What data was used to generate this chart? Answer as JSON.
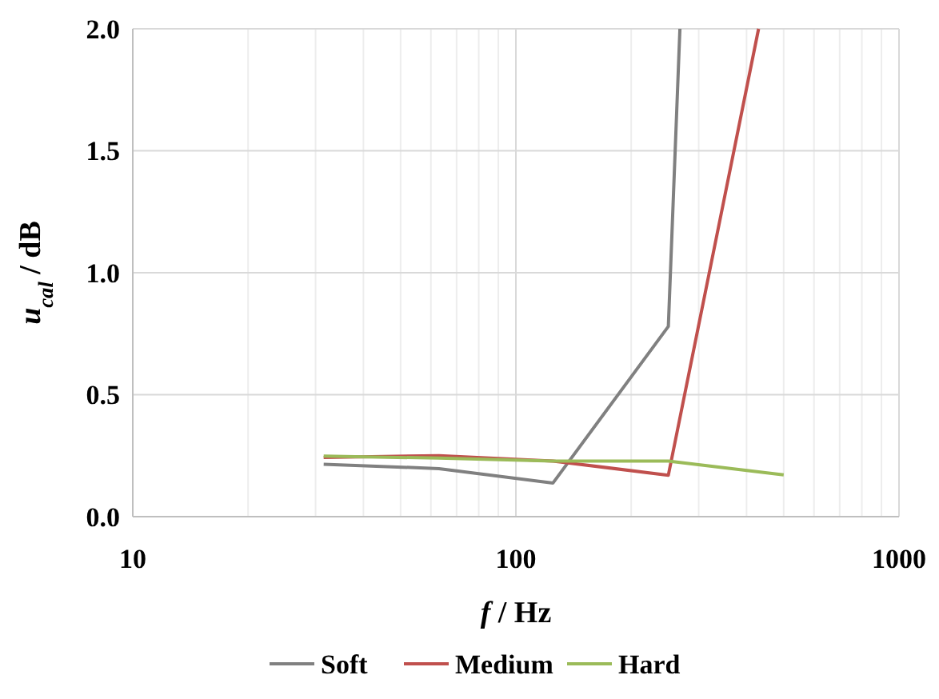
{
  "chart_data": {
    "type": "line",
    "xlabel": "f / Hz",
    "ylabel": "u$_{cal}$ / dB",
    "log": "x",
    "grid": true,
    "legend": "bottom",
    "marker": "none",
    "line_style": "solid",
    "xlim": [
      10,
      1000
    ],
    "xticks": [
      10,
      100,
      1000
    ],
    "ylim": [
      0,
      2
    ],
    "yticks": [
      {
        "value": 0,
        "label": "0.0"
      },
      {
        "value": 0.5,
        "label": "0.5"
      },
      {
        "value": 1,
        "label": "1.0"
      },
      {
        "value": 1.5,
        "label": "1.5"
      },
      {
        "value": 2,
        "label": "2.0"
      }
    ],
    "series": [
      {
        "name": "Soft",
        "color": "#808080",
        "x": [
          31.5,
          63,
          125,
          250,
          268
        ],
        "values": [
          0.215,
          0.197,
          0.138,
          0.78,
          2.0
        ]
      },
      {
        "name": "Medium",
        "color": "#c0504d",
        "x": [
          31.5,
          63,
          125,
          250,
          430
        ],
        "values": [
          0.243,
          0.25,
          0.228,
          0.17,
          2.0
        ]
      },
      {
        "name": "Hard",
        "color": "#9bbb59",
        "x": [
          31.5,
          63,
          125,
          250,
          500
        ],
        "values": [
          0.248,
          0.24,
          0.228,
          0.228,
          0.171
        ]
      }
    ]
  }
}
